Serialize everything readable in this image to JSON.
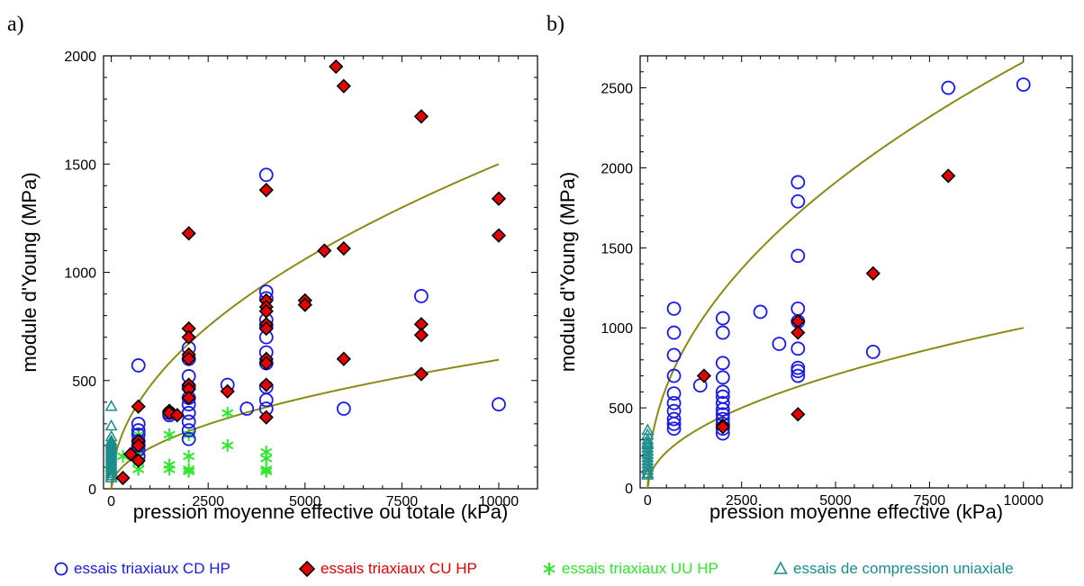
{
  "chart_data": [
    {
      "panel": "a)",
      "type": "scatter",
      "xlabel": "pression moyenne effective ou totale (kPa)",
      "ylabel": "module d'Young (MPa)",
      "xlim": [
        -200,
        11000
      ],
      "ylim": [
        0,
        2000
      ],
      "xticks": [
        0,
        2500,
        5000,
        7500,
        10000
      ],
      "xtick_labels": [
        "0",
        "2500",
        "5000",
        "7500",
        "10000"
      ],
      "yticks": [
        0,
        500,
        1000,
        1500,
        2000
      ],
      "ytick_labels": [
        "0",
        "500",
        "1000",
        "1500",
        "2000"
      ],
      "series": [
        {
          "key": "cd",
          "points": [
            [
              700,
              570
            ],
            [
              700,
              300
            ],
            [
              700,
              270
            ],
            [
              700,
              250
            ],
            [
              700,
              220
            ],
            [
              700,
              200
            ],
            [
              700,
              180
            ],
            [
              700,
              150
            ],
            [
              1500,
              350
            ],
            [
              1500,
              340
            ],
            [
              2000,
              650
            ],
            [
              2000,
              600
            ],
            [
              2000,
              520
            ],
            [
              2000,
              470
            ],
            [
              2000,
              420
            ],
            [
              2000,
              390
            ],
            [
              2000,
              350
            ],
            [
              2000,
              310
            ],
            [
              2000,
              270
            ],
            [
              2000,
              230
            ],
            [
              3000,
              480
            ],
            [
              3500,
              370
            ],
            [
              4000,
              1450
            ],
            [
              4000,
              910
            ],
            [
              4000,
              880
            ],
            [
              4000,
              780
            ],
            [
              4000,
              750
            ],
            [
              4000,
              700
            ],
            [
              4000,
              630
            ],
            [
              4000,
              580
            ],
            [
              4000,
              470
            ],
            [
              4000,
              410
            ],
            [
              4000,
              370
            ],
            [
              6000,
              370
            ],
            [
              8000,
              890
            ],
            [
              10000,
              390
            ]
          ]
        },
        {
          "key": "cu",
          "points": [
            [
              300,
              50
            ],
            [
              500,
              160
            ],
            [
              700,
              380
            ],
            [
              700,
              220
            ],
            [
              700,
              200
            ],
            [
              700,
              130
            ],
            [
              1500,
              360
            ],
            [
              1500,
              350
            ],
            [
              1700,
              340
            ],
            [
              2000,
              1180
            ],
            [
              2000,
              740
            ],
            [
              2000,
              700
            ],
            [
              2000,
              620
            ],
            [
              2000,
              600
            ],
            [
              2000,
              480
            ],
            [
              2000,
              460
            ],
            [
              2000,
              420
            ],
            [
              3000,
              450
            ],
            [
              4000,
              1380
            ],
            [
              4000,
              870
            ],
            [
              4000,
              840
            ],
            [
              4000,
              820
            ],
            [
              4000,
              760
            ],
            [
              4000,
              740
            ],
            [
              4000,
              600
            ],
            [
              4000,
              580
            ],
            [
              4000,
              480
            ],
            [
              4000,
              330
            ],
            [
              5000,
              870
            ],
            [
              5000,
              850
            ],
            [
              5500,
              1100
            ],
            [
              5800,
              1950
            ],
            [
              6000,
              1860
            ],
            [
              6000,
              1110
            ],
            [
              6000,
              600
            ],
            [
              8000,
              1720
            ],
            [
              8000,
              760
            ],
            [
              8000,
              710
            ],
            [
              8000,
              530
            ],
            [
              10000,
              1340
            ],
            [
              10000,
              1170
            ]
          ]
        },
        {
          "key": "uu",
          "points": [
            [
              300,
              150
            ],
            [
              700,
              250
            ],
            [
              700,
              230
            ],
            [
              700,
              200
            ],
            [
              700,
              170
            ],
            [
              700,
              130
            ],
            [
              700,
              120
            ],
            [
              700,
              90
            ],
            [
              1500,
              250
            ],
            [
              1500,
              110
            ],
            [
              1500,
              90
            ],
            [
              2000,
              250
            ],
            [
              2000,
              150
            ],
            [
              2000,
              90
            ],
            [
              2000,
              80
            ],
            [
              3000,
              350
            ],
            [
              3000,
              200
            ],
            [
              4000,
              170
            ],
            [
              4000,
              140
            ],
            [
              4000,
              90
            ],
            [
              4000,
              80
            ]
          ]
        },
        {
          "key": "uc",
          "points": [
            [
              0,
              380
            ],
            [
              0,
              290
            ],
            [
              0,
              240
            ],
            [
              0,
              220
            ],
            [
              0,
              210
            ],
            [
              0,
              200
            ],
            [
              0,
              190
            ],
            [
              0,
              180
            ],
            [
              0,
              170
            ],
            [
              0,
              160
            ],
            [
              0,
              150
            ],
            [
              0,
              140
            ],
            [
              0,
              130
            ],
            [
              0,
              120
            ],
            [
              0,
              110
            ],
            [
              0,
              100
            ],
            [
              0,
              90
            ],
            [
              0,
              80
            ],
            [
              0,
              70
            ],
            [
              0,
              60
            ],
            [
              0,
              50
            ]
          ]
        }
      ],
      "fits": [
        {
          "coef": 15,
          "exp": 0.5
        },
        {
          "coef": 5.96,
          "exp": 0.5
        }
      ]
    },
    {
      "panel": "b)",
      "type": "scatter",
      "xlabel": "pression moyenne effective (kPa)",
      "ylabel": "module d'Young (MPa)",
      "xlim": [
        -200,
        11300
      ],
      "ylim": [
        0,
        2700
      ],
      "xticks": [
        0,
        2500,
        5000,
        7500,
        10000
      ],
      "xtick_labels": [
        "0",
        "2500",
        "5000",
        "7500",
        "10000"
      ],
      "yticks": [
        0,
        500,
        1000,
        1500,
        2000,
        2500
      ],
      "ytick_labels": [
        "0",
        "500",
        "1000",
        "1500",
        "2000",
        "2500"
      ],
      "series": [
        {
          "key": "cd",
          "points": [
            [
              700,
              1120
            ],
            [
              700,
              970
            ],
            [
              700,
              830
            ],
            [
              700,
              700
            ],
            [
              700,
              590
            ],
            [
              700,
              530
            ],
            [
              700,
              480
            ],
            [
              700,
              430
            ],
            [
              700,
              400
            ],
            [
              700,
              370
            ],
            [
              1400,
              640
            ],
            [
              2000,
              1060
            ],
            [
              2000,
              970
            ],
            [
              2000,
              780
            ],
            [
              2000,
              690
            ],
            [
              2000,
              600
            ],
            [
              2000,
              570
            ],
            [
              2000,
              530
            ],
            [
              2000,
              490
            ],
            [
              2000,
              460
            ],
            [
              2000,
              430
            ],
            [
              2000,
              400
            ],
            [
              2000,
              370
            ],
            [
              2000,
              340
            ],
            [
              3000,
              1100
            ],
            [
              3500,
              900
            ],
            [
              4000,
              1910
            ],
            [
              4000,
              1790
            ],
            [
              4000,
              1450
            ],
            [
              4000,
              1120
            ],
            [
              4000,
              1040
            ],
            [
              4000,
              870
            ],
            [
              4000,
              750
            ],
            [
              4000,
              730
            ],
            [
              4000,
              700
            ],
            [
              6000,
              850
            ],
            [
              8000,
              2500
            ],
            [
              10000,
              2520
            ]
          ]
        },
        {
          "key": "cu",
          "points": [
            [
              1500,
              700
            ],
            [
              2000,
              390
            ],
            [
              2000,
              380
            ],
            [
              4000,
              1040
            ],
            [
              4000,
              970
            ],
            [
              4000,
              460
            ],
            [
              6000,
              1340
            ],
            [
              8000,
              1950
            ]
          ]
        },
        {
          "key": "uc",
          "points": [
            [
              0,
              360
            ],
            [
              0,
              330
            ],
            [
              0,
              300
            ],
            [
              0,
              280
            ],
            [
              0,
              270
            ],
            [
              0,
              250
            ],
            [
              0,
              230
            ],
            [
              0,
              210
            ],
            [
              0,
              190
            ],
            [
              0,
              170
            ],
            [
              0,
              150
            ],
            [
              0,
              130
            ],
            [
              0,
              110
            ],
            [
              0,
              90
            ],
            [
              0,
              80
            ]
          ]
        }
      ],
      "fits": [
        {
          "coef": 32,
          "exp": 0.48
        },
        {
          "coef": 10,
          "exp": 0.5
        }
      ]
    }
  ],
  "legend": [
    {
      "key": "cd",
      "label": "essais triaxiaux CD HP",
      "color": "#1a1ae6",
      "marker": "circle"
    },
    {
      "key": "cu",
      "label": "essais triaxiaux CU HP",
      "color": "#e60000",
      "marker": "diamond"
    },
    {
      "key": "uu",
      "label": "essais triaxiaux UU HP",
      "color": "#2ee62e",
      "marker": "asterisk"
    },
    {
      "key": "uc",
      "label": "essais de compression uniaxiale",
      "color": "#1a8c8c",
      "marker": "triangle"
    }
  ],
  "colors": {
    "fit_line": "#8c8a14",
    "axis": "#000000"
  }
}
